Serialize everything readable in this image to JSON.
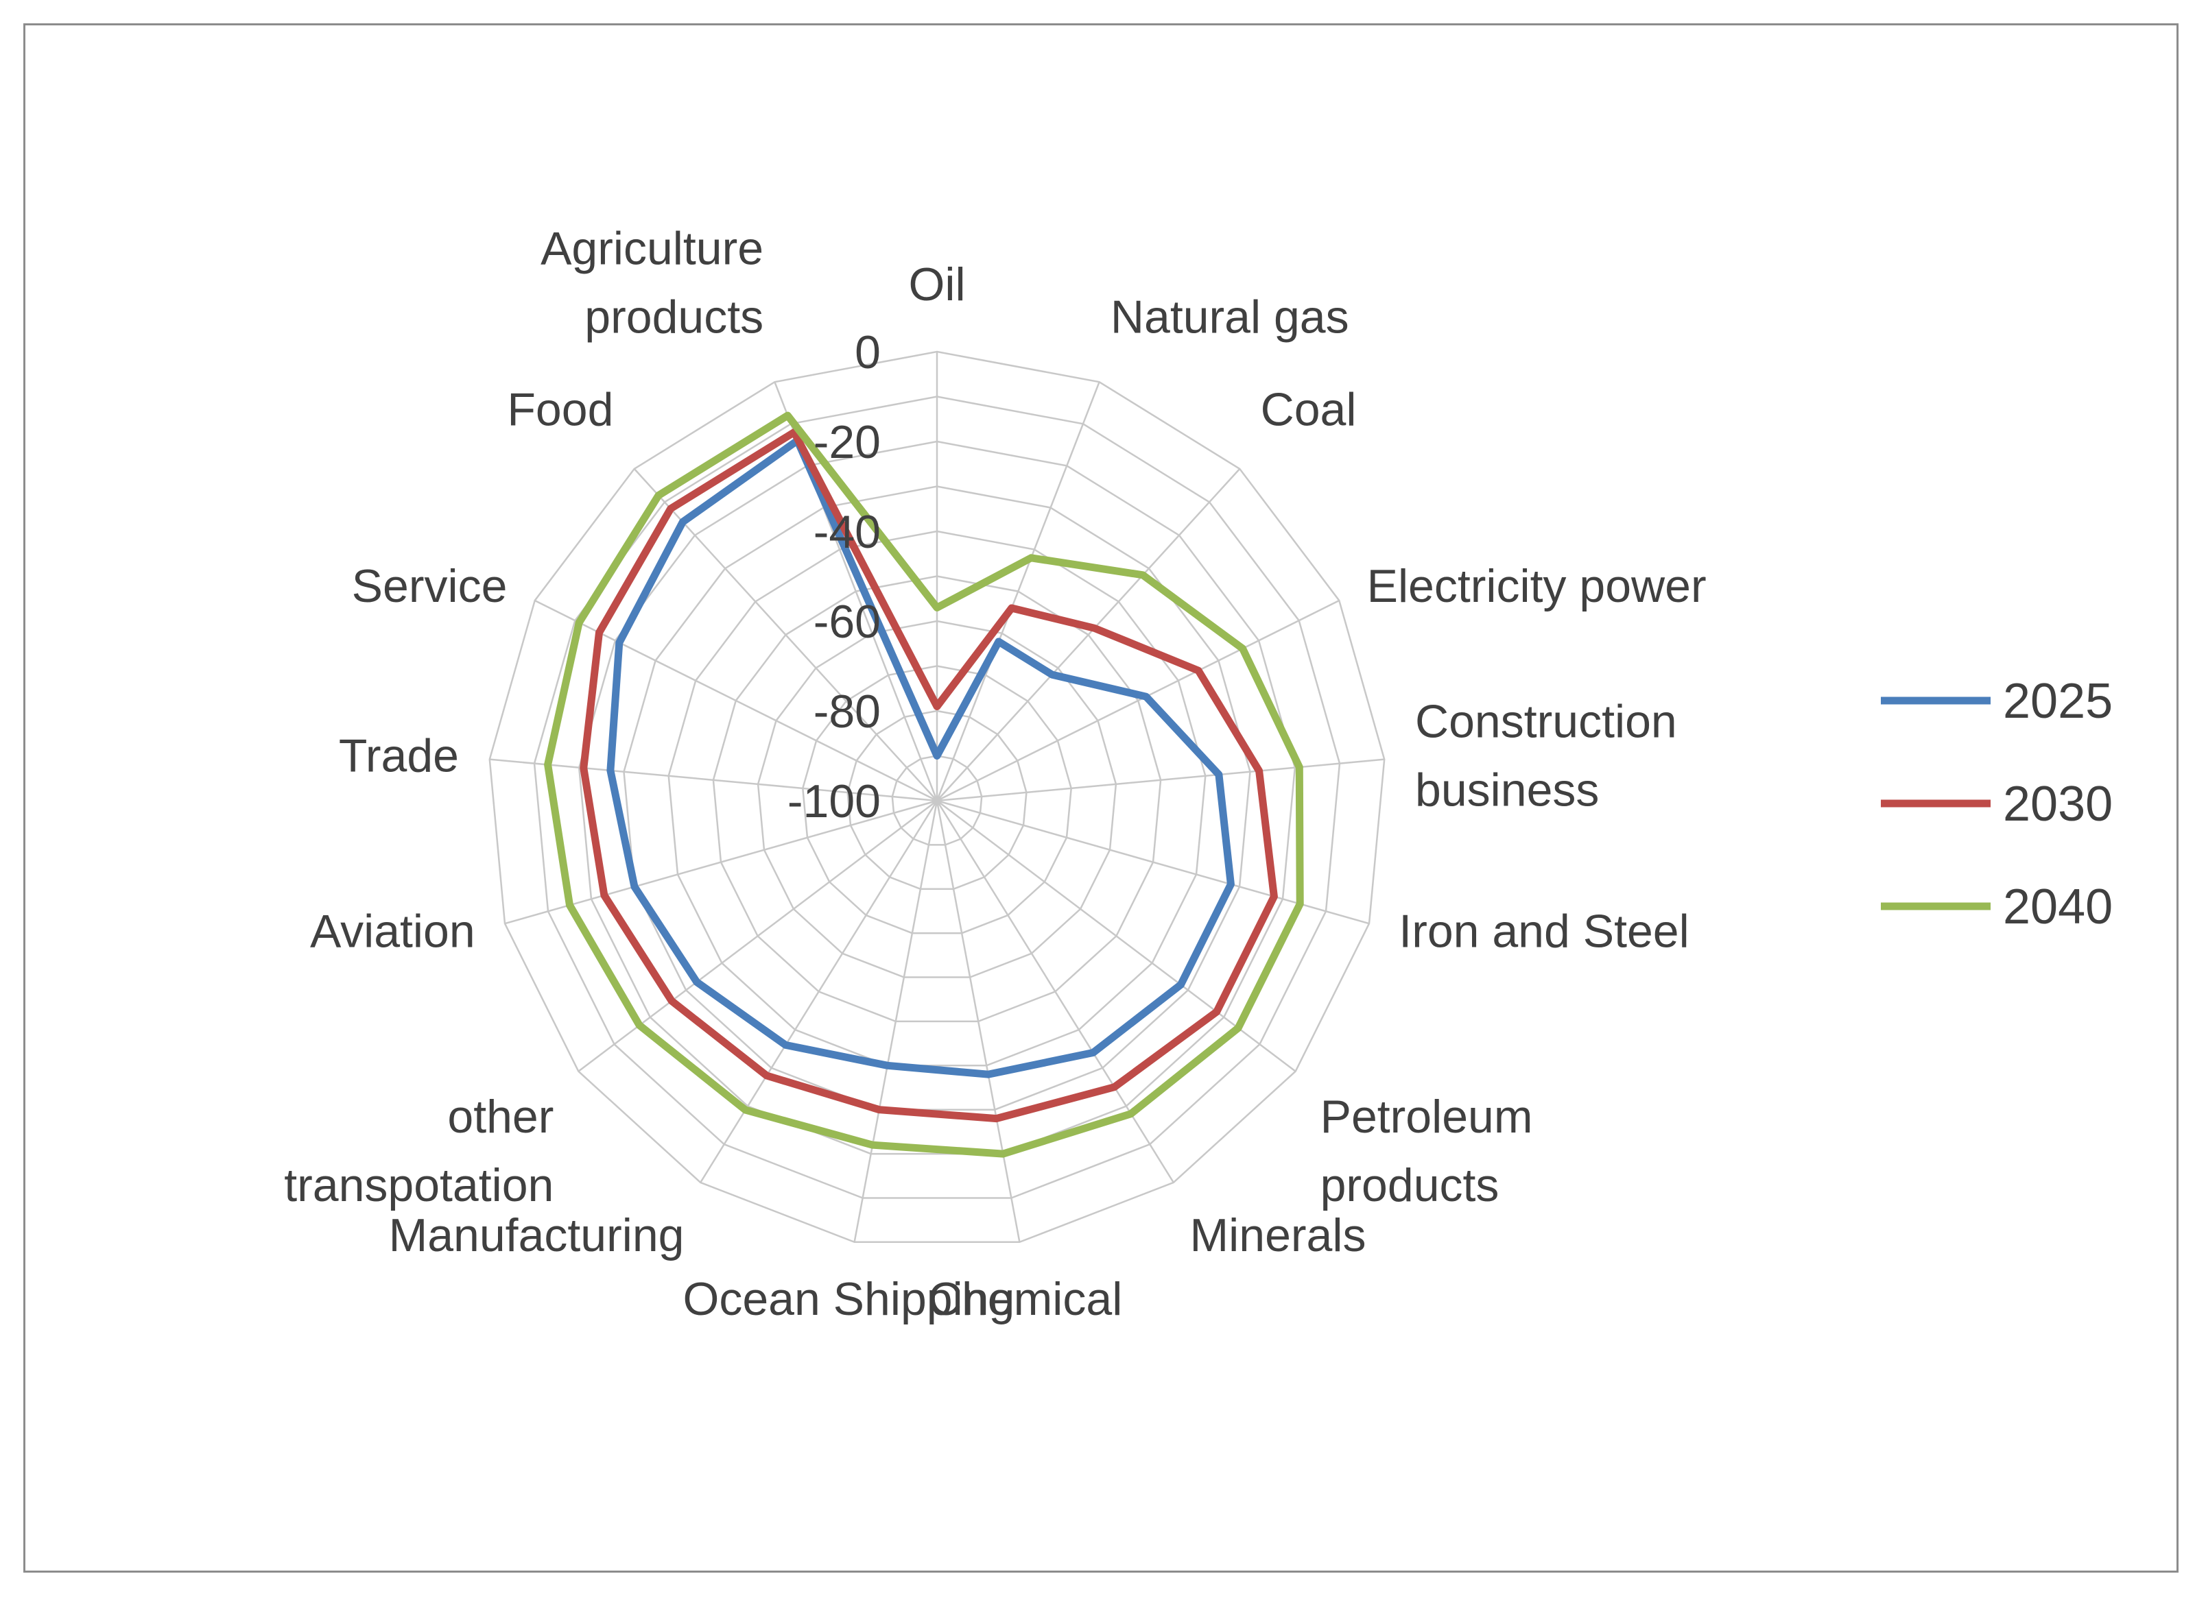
{
  "chart_data": {
    "type": "radar",
    "categories": [
      "Oil",
      "Natural gas",
      "Coal",
      "Electricity power",
      "Construction business",
      "Iron and Steel",
      "Petroleum products",
      "Minerals",
      "Chemical",
      "Ocean Shipping",
      "Manufacturing",
      "other transpotation",
      "Aviation",
      "Trade",
      "Service",
      "Food",
      "Agriculture products"
    ],
    "category_lines": [
      [
        "Oil"
      ],
      [
        "Natural gas"
      ],
      [
        "Coal"
      ],
      [
        "Electricity power"
      ],
      [
        "Construction",
        "business"
      ],
      [
        "Iron and Steel"
      ],
      [
        "Petroleum",
        "products"
      ],
      [
        "Minerals"
      ],
      [
        "Chemical"
      ],
      [
        "Ocean Shipping"
      ],
      [
        "Manufacturing"
      ],
      [
        "other",
        "transpotation"
      ],
      [
        "Aviation"
      ],
      [
        "Trade"
      ],
      [
        "Service"
      ],
      [
        "Food"
      ],
      [
        "Agriculture",
        "products"
      ]
    ],
    "series": [
      {
        "name": "2025",
        "color": "#4a7ebb",
        "values": [
          -90,
          -62,
          -62,
          -48,
          -37,
          -32,
          -32,
          -34,
          -38,
          -40,
          -36,
          -33,
          -30,
          -27,
          -21,
          -16,
          -14
        ]
      },
      {
        "name": "2030",
        "color": "#be4b48",
        "values": [
          -79,
          -54,
          -48,
          -35,
          -28,
          -22,
          -22,
          -25,
          -28,
          -30,
          -28,
          -26,
          -23,
          -21,
          -16,
          -12,
          -12
        ]
      },
      {
        "name": "2040",
        "color": "#98b954",
        "values": [
          -57,
          -42,
          -32,
          -24,
          -19,
          -16,
          -16,
          -18,
          -20,
          -22,
          -19,
          -17,
          -15,
          -13,
          -11,
          -8,
          -8
        ]
      }
    ],
    "r_ticks": [
      "0",
      "-20",
      "-40",
      "-60",
      "-80",
      "-100"
    ],
    "r_range": [
      -100,
      0
    ],
    "legend_position": "right",
    "grid": true
  }
}
